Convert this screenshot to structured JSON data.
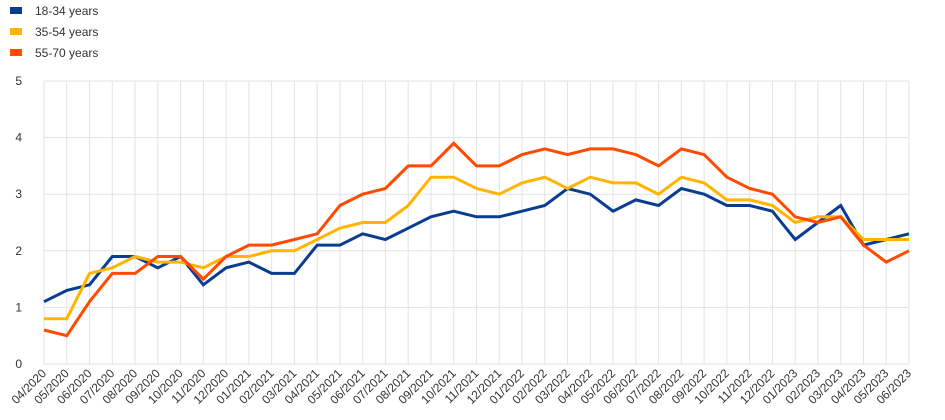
{
  "chart_data": {
    "type": "line",
    "title": "",
    "xlabel": "",
    "ylabel": "",
    "ylim": [
      0,
      5
    ],
    "yticks": [
      0,
      1,
      2,
      3,
      4,
      5
    ],
    "grid": true,
    "legend_position": "top-left",
    "categories": [
      "04/2020",
      "05/2020",
      "06/2020",
      "07/2020",
      "08/2020",
      "09/2020",
      "10/2020",
      "11/2020",
      "12/2020",
      "01/2021",
      "02/2021",
      "03/2021",
      "04/2021",
      "05/2021",
      "06/2021",
      "07/2021",
      "08/2021",
      "09/2021",
      "10/2021",
      "11/2021",
      "12/2021",
      "01/2022",
      "02/2022",
      "03/2022",
      "04/2022",
      "05/2022",
      "06/2022",
      "07/2022",
      "08/2022",
      "09/2022",
      "10/2022",
      "11/2022",
      "12/2022",
      "01/2023",
      "02/2023",
      "03/2023",
      "04/2023",
      "05/2023",
      "06/2023"
    ],
    "series": [
      {
        "name": "18-34 years",
        "color": "#0a3d91",
        "values": [
          1.1,
          1.3,
          1.4,
          1.9,
          1.9,
          1.7,
          1.9,
          1.4,
          1.7,
          1.8,
          1.6,
          1.6,
          2.1,
          2.1,
          2.3,
          2.2,
          2.4,
          2.6,
          2.7,
          2.6,
          2.6,
          2.7,
          2.8,
          3.1,
          3.0,
          2.7,
          2.9,
          2.8,
          3.1,
          3.0,
          2.8,
          2.8,
          2.7,
          2.2,
          2.5,
          2.8,
          2.1,
          2.2,
          2.3
        ]
      },
      {
        "name": "35-54 years",
        "color": "#ffb400",
        "values": [
          0.8,
          0.8,
          1.6,
          1.7,
          1.9,
          1.8,
          1.8,
          1.7,
          1.9,
          1.9,
          2.0,
          2.0,
          2.2,
          2.4,
          2.5,
          2.5,
          2.8,
          3.3,
          3.3,
          3.1,
          3.0,
          3.2,
          3.3,
          3.1,
          3.3,
          3.2,
          3.2,
          3.0,
          3.3,
          3.2,
          2.9,
          2.9,
          2.8,
          2.5,
          2.6,
          2.6,
          2.2,
          2.2,
          2.2
        ]
      },
      {
        "name": "55-70 years",
        "color": "#ff4b00",
        "values": [
          0.6,
          0.5,
          1.1,
          1.6,
          1.6,
          1.9,
          1.9,
          1.5,
          1.9,
          2.1,
          2.1,
          2.2,
          2.3,
          2.8,
          3.0,
          3.1,
          3.5,
          3.5,
          3.9,
          3.5,
          3.5,
          3.7,
          3.8,
          3.7,
          3.8,
          3.8,
          3.7,
          3.5,
          3.8,
          3.7,
          3.3,
          3.1,
          3.0,
          2.6,
          2.5,
          2.6,
          2.1,
          1.8,
          2.0
        ]
      }
    ]
  }
}
